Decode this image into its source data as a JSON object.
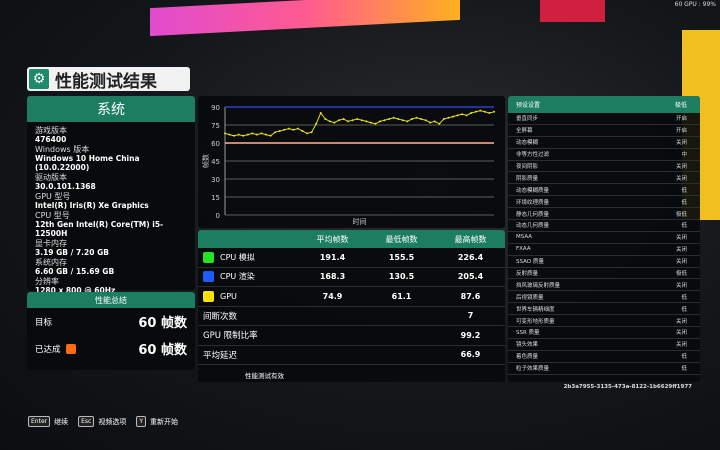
{
  "hud": {
    "text": "60 GPU : 99%"
  },
  "title": {
    "icon": "gear-icon",
    "text": "性能测试结果"
  },
  "system": {
    "header": "系统",
    "items": [
      {
        "label": "游戏版本",
        "value": "476400"
      },
      {
        "label": "Windows 版本",
        "value": "Windows 10 Home China (10.0.22000)"
      },
      {
        "label": "驱动版本",
        "value": "30.0.101.1368"
      },
      {
        "label": "GPU 型号",
        "value": "Intel(R) Iris(R) Xe Graphics"
      },
      {
        "label": "CPU 型号",
        "value": "12th Gen Intel(R) Core(TM) i5-12500H"
      },
      {
        "label": "显卡内存",
        "value": "3.19 GB / 7.20 GB"
      },
      {
        "label": "系统内存",
        "value": "6.60 GB / 15.69 GB"
      },
      {
        "label": "分辨率",
        "value": "1280 x 800 @ 60Hz"
      }
    ]
  },
  "summary": {
    "header": "性能总结",
    "target_label": "目标",
    "target_value": "60 帧数",
    "achieved_label": "已达成",
    "achieved_value": "60 帧数",
    "achieved_color": "#ff6a13"
  },
  "chart_data": {
    "type": "line",
    "xlabel": "时间",
    "ylabel": "帧数",
    "ylim": [
      0,
      90
    ],
    "yticks": [
      "0",
      "15",
      "30",
      "45",
      "60",
      "75",
      "90"
    ],
    "grid": true,
    "reference_lines": [
      {
        "value": 90,
        "color": "#2a3fd0"
      },
      {
        "value": 60,
        "color": "#ffb59a"
      }
    ],
    "series": [
      {
        "color": "#e8e020",
        "values": [
          68,
          67,
          66,
          67,
          66,
          67,
          68,
          67,
          68,
          67,
          66,
          69,
          70,
          71,
          72,
          71,
          72,
          70,
          68,
          69,
          76,
          85,
          80,
          78,
          77,
          79,
          80,
          78,
          79,
          80,
          79,
          78,
          77,
          76,
          78,
          79,
          80,
          81,
          80,
          79,
          78,
          80,
          81,
          80,
          79,
          77,
          78,
          76,
          80,
          81,
          82,
          83,
          84,
          83,
          85,
          86,
          87,
          86,
          85,
          86
        ]
      }
    ]
  },
  "table": {
    "headers": [
      "",
      "平均帧数",
      "最低帧数",
      "最高帧数"
    ],
    "rows": [
      {
        "label": "CPU 模拟",
        "color": "#22e422",
        "avg": "191.4",
        "min": "155.5",
        "max": "226.4"
      },
      {
        "label": "CPU 渲染",
        "color": "#1a5cff",
        "avg": "168.3",
        "min": "130.5",
        "max": "205.4"
      },
      {
        "label": "GPU",
        "color": "#ffe000",
        "avg": "74.9",
        "min": "61.1",
        "max": "87.6"
      }
    ],
    "extra": [
      {
        "label": "间断次数",
        "value": "7"
      },
      {
        "label": "GPU 限制比率",
        "value": "99.2"
      },
      {
        "label": "平均延迟",
        "value": "66.9"
      }
    ],
    "footer": "性能测试有效"
  },
  "settings": {
    "header": "预设设置",
    "header_value": "极低",
    "items": [
      [
        "垂直同步",
        "开启"
      ],
      [
        "全屏幕",
        "开启"
      ],
      [
        "动态模糊",
        "关闭"
      ],
      [
        "非等方性过滤",
        "中"
      ],
      [
        "夜间阴影",
        "关闭"
      ],
      [
        "阴影质量",
        "关闭"
      ],
      [
        "动态模糊质量",
        "低"
      ],
      [
        "环境纹理质量",
        "低"
      ],
      [
        "静态几何质量",
        "极低"
      ],
      [
        "动态几何质量",
        "低"
      ],
      [
        "MSAA",
        "关闭"
      ],
      [
        "FXAA",
        "关闭"
      ],
      [
        "SSAO 质量",
        "关闭"
      ],
      [
        "反射质量",
        "极低"
      ],
      [
        "挡风玻璃反射质量",
        "关闭"
      ],
      [
        "后视镜质量",
        "低"
      ],
      [
        "世界车辆精细度",
        "低"
      ],
      [
        "可变形地形质量",
        "关闭"
      ],
      [
        "SSR 质量",
        "关闭"
      ],
      [
        "镜头效果",
        "关闭"
      ],
      [
        "着色质量",
        "低"
      ],
      [
        "粒子效果质量",
        "低"
      ]
    ]
  },
  "hash": "2b3a7955-3135-473a-8122-1b6629ff1977",
  "hints": [
    {
      "key": "Enter",
      "label": "继续"
    },
    {
      "key": "Esc",
      "label": "视频选项"
    },
    {
      "key": "Y",
      "label": "重新开始"
    }
  ]
}
